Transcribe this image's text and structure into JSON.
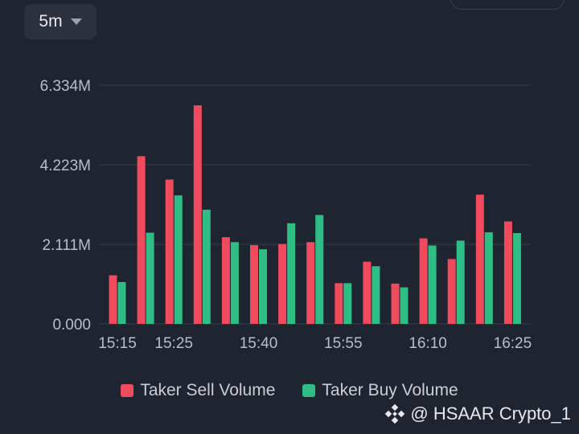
{
  "interval": {
    "label": "5m"
  },
  "watermark": {
    "text": "@ HSAAR Crypto_1"
  },
  "colors": {
    "sell": "#ef4a5e",
    "buy": "#2ebd85",
    "grid": "#353b47",
    "text": "#b8bec9"
  },
  "chart_data": {
    "type": "bar",
    "categories": [
      "15:15",
      "15:20",
      "15:25",
      "15:30",
      "15:35",
      "15:40",
      "15:45",
      "15:50",
      "15:55",
      "16:00",
      "16:05",
      "16:10",
      "16:15",
      "16:20",
      "16:25"
    ],
    "x_ticks": [
      "15:15",
      "15:25",
      "15:40",
      "15:55",
      "16:10",
      "16:25"
    ],
    "y_ticks": [
      "0.000",
      "2.111M",
      "4.223M",
      "6.334M"
    ],
    "ylim": [
      0,
      6.334
    ],
    "series": [
      {
        "name": "Taker Sell Volume",
        "values": [
          1.29,
          4.45,
          3.83,
          5.8,
          2.3,
          2.09,
          2.12,
          2.17,
          1.08,
          1.65,
          1.07,
          2.27,
          1.72,
          3.43,
          2.72
        ]
      },
      {
        "name": "Taker Buy Volume",
        "values": [
          1.11,
          2.42,
          3.41,
          3.03,
          2.17,
          1.98,
          2.67,
          2.89,
          1.08,
          1.53,
          0.97,
          2.08,
          2.21,
          2.43,
          2.41
        ]
      }
    ]
  }
}
